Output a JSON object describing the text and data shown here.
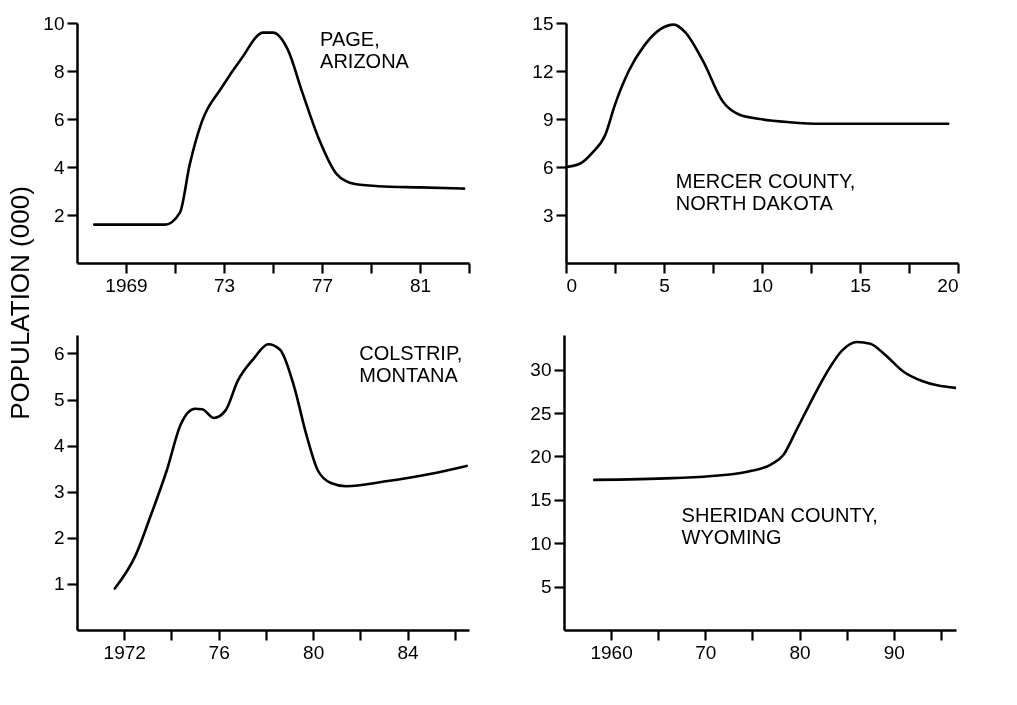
{
  "chart_data": [
    {
      "type": "line",
      "title": "PAGE, ARIZONA",
      "ylabel": "POPULATION (000)",
      "grid": false,
      "marker": "none",
      "line_style": "solid",
      "x": [
        1967.7,
        1968.5,
        1969.5,
        1970.6,
        1971.2,
        1971.6,
        1972.1,
        1972.9,
        1973.7,
        1974.6,
        1975,
        1975.6,
        1976.2,
        1976.9,
        1977.6,
        1978.3,
        1979.3,
        1981,
        1982.8
      ],
      "series": [
        {
          "color": "#000000",
          "values": [
            1.6,
            1.6,
            1.6,
            1.6,
            2.1,
            4.1,
            5.9,
            7.3,
            8.5,
            9.6,
            9.6,
            8.9,
            7.1,
            5.1,
            3.7,
            3.3,
            3.2,
            3.15,
            3.1
          ]
        }
      ],
      "xlim": [
        1967,
        1983
      ],
      "ylim": [
        0,
        10
      ],
      "xticks": [
        1969,
        {
          "value": 1971,
          "label": null
        },
        {
          "value": 1973,
          "label": "73"
        },
        {
          "value": 1975,
          "label": null
        },
        {
          "value": 1977,
          "label": "77"
        },
        {
          "value": 1979,
          "label": null
        },
        {
          "value": 1981,
          "label": "81"
        },
        {
          "value": 1983,
          "label": null
        }
      ],
      "yticks": [
        2,
        4,
        6,
        8,
        10
      ]
    },
    {
      "type": "line",
      "title": "MERCER COUNTY, NORTH DAKOTA",
      "grid": false,
      "marker": "none",
      "line_style": "solid",
      "x": [
        0,
        0.7,
        1.35,
        2.0,
        2.5,
        3.2,
        4.0,
        4.8,
        5.5,
        6.1,
        7.0,
        8.0,
        8.8,
        9.9,
        11.4,
        13.1,
        16,
        19.5
      ],
      "series": [
        {
          "color": "#000000",
          "values": [
            6.0,
            6.2,
            6.9,
            8.0,
            9.9,
            12.0,
            13.6,
            14.6,
            14.9,
            14.4,
            12.6,
            10.1,
            9.3,
            9.0,
            8.8,
            8.7,
            8.7,
            8.7
          ]
        }
      ],
      "xlim": [
        0,
        20
      ],
      "ylim": [
        0,
        15
      ],
      "xticks": [
        0,
        {
          "value": 2.5,
          "label": null
        },
        5,
        {
          "value": 7.5,
          "label": null
        },
        10,
        {
          "value": 12.5,
          "label": null
        },
        15,
        {
          "value": 17.5,
          "label": null
        },
        20
      ],
      "yticks": [
        3,
        6,
        9,
        12,
        15
      ]
    },
    {
      "type": "line",
      "title": "COLSTRIP, MONTANA",
      "grid": false,
      "marker": "none",
      "line_style": "solid",
      "x": [
        1971.6,
        1972.5,
        1973.1,
        1973.8,
        1974.4,
        1975.0,
        1975.3,
        1975.8,
        1976.3,
        1976.8,
        1977.5,
        1978.1,
        1978.6,
        1979.2,
        1979.7,
        1980.2,
        1980.75,
        1981.4,
        1983.0,
        1985.0,
        1986.5
      ],
      "series": [
        {
          "color": "#000000",
          "values": [
            0.9,
            1.64,
            2.45,
            3.46,
            4.47,
            4.8,
            4.79,
            4.6,
            4.77,
            5.4,
            5.9,
            6.2,
            6.08,
            5.27,
            4.26,
            3.46,
            3.19,
            3.12,
            3.22,
            3.39,
            3.56
          ]
        }
      ],
      "xlim": [
        1970,
        1986.6
      ],
      "ylim": [
        0,
        6.4
      ],
      "xticks": [
        1972,
        {
          "value": 1974,
          "label": null
        },
        {
          "value": 1976,
          "label": "76"
        },
        {
          "value": 1978,
          "label": null
        },
        {
          "value": 1980,
          "label": "80"
        },
        {
          "value": 1982,
          "label": null
        },
        {
          "value": 1984,
          "label": "84"
        },
        {
          "value": 1986,
          "label": null
        }
      ],
      "yticks": [
        1,
        2,
        3,
        4,
        5,
        6
      ]
    },
    {
      "type": "line",
      "title": "SHERIDAN COUNTY, WYOMING",
      "grid": false,
      "marker": "none",
      "line_style": "solid",
      "x": [
        1958.2,
        1966.5,
        1971.4,
        1974.7,
        1977,
        1978.3,
        1979.6,
        1981.2,
        1982.9,
        1984.5,
        1986.1,
        1987.5,
        1989.1,
        1991.0,
        1993.0,
        1994.6,
        1996.6
      ],
      "series": [
        {
          "color": "#000000",
          "values": [
            17.3,
            17.5,
            17.8,
            18.3,
            19.1,
            20.2,
            22.9,
            26.3,
            29.7,
            32.2,
            33.2,
            33.0,
            31.7,
            29.8,
            28.7,
            28.2,
            27.9
          ]
        }
      ],
      "xlim": [
        1955,
        1996.6
      ],
      "ylim": [
        0,
        34
      ],
      "xticks": [
        1960,
        {
          "value": 1965,
          "label": null
        },
        {
          "value": 1970,
          "label": "70"
        },
        {
          "value": 1975,
          "label": null
        },
        {
          "value": 1980,
          "label": "80"
        },
        {
          "value": 1985,
          "label": null
        },
        {
          "value": 1990,
          "label": "90"
        },
        {
          "value": 1995,
          "label": null
        }
      ],
      "yticks": [
        5,
        10,
        15,
        20,
        25,
        30
      ]
    }
  ]
}
